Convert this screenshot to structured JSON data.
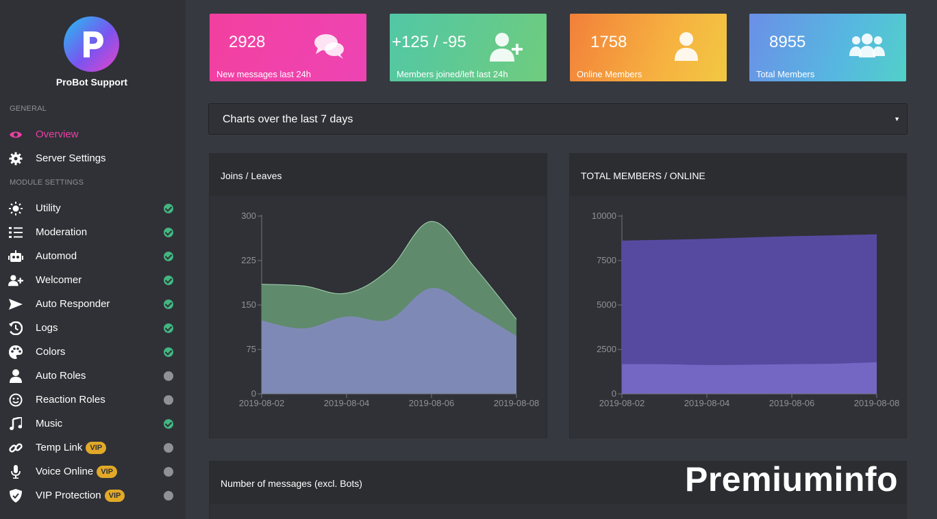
{
  "sidebar": {
    "server_name": "ProBot Support",
    "sections": {
      "general": "GENERAL",
      "module_settings": "MODULE SETTINGS"
    },
    "items": [
      {
        "label": "Overview",
        "icon": "eye-icon",
        "active": true
      },
      {
        "label": "Server Settings",
        "icon": "gear-icon"
      },
      {
        "label": "Utility",
        "icon": "sun-icon",
        "status": "enabled"
      },
      {
        "label": "Moderation",
        "icon": "checklist-icon",
        "status": "enabled"
      },
      {
        "label": "Automod",
        "icon": "robot-icon",
        "status": "enabled"
      },
      {
        "label": "Welcomer",
        "icon": "user-plus-icon",
        "status": "enabled"
      },
      {
        "label": "Auto Responder",
        "icon": "paper-plane-icon",
        "status": "enabled"
      },
      {
        "label": "Logs",
        "icon": "history-icon",
        "status": "enabled"
      },
      {
        "label": "Colors",
        "icon": "palette-icon",
        "status": "enabled"
      },
      {
        "label": "Auto Roles",
        "icon": "user-icon",
        "status": "disabled"
      },
      {
        "label": "Reaction Roles",
        "icon": "smile-icon",
        "status": "disabled"
      },
      {
        "label": "Music",
        "icon": "music-note-icon",
        "status": "enabled"
      },
      {
        "label": "Temp Link",
        "icon": "link-icon",
        "status": "disabled",
        "vip": "VIP"
      },
      {
        "label": "Voice Online",
        "icon": "microphone-icon",
        "status": "disabled",
        "vip": "VIP"
      },
      {
        "label": "VIP Protection",
        "icon": "shield-icon",
        "status": "disabled",
        "vip": "VIP"
      }
    ]
  },
  "stats": [
    {
      "value": "2928",
      "label": "New messages last 24h",
      "icon": "comments-icon"
    },
    {
      "value": "+125 / -95",
      "label": "Members joined/left last 24h",
      "icon": "user-plus-icon"
    },
    {
      "value": "1758",
      "label": "Online Members",
      "icon": "user-icon"
    },
    {
      "value": "8955",
      "label": "Total Members",
      "icon": "users-icon"
    }
  ],
  "range_select": {
    "value": "Charts over the last 7 days"
  },
  "panels": {
    "joins": "Joins / Leaves",
    "members": "TOTAL MEMBERS / ONLINE",
    "messages": "Number of messages (excl. Bots)"
  },
  "watermark": "Premiuminfo",
  "colors": {
    "accent": "#f03ea6",
    "enabled": "#43b581",
    "vip": "#e2a928"
  },
  "chart_data": [
    {
      "type": "area",
      "title": "Joins / Leaves",
      "x": [
        "2019-08-02",
        "2019-08-03",
        "2019-08-04",
        "2019-08-05",
        "2019-08-06",
        "2019-08-07",
        "2019-08-08"
      ],
      "x_tick_labels": [
        "2019-08-02",
        "2019-08-04",
        "2019-08-06",
        "2019-08-08"
      ],
      "y_ticks": [
        0,
        75,
        150,
        225,
        300
      ],
      "ylim": [
        0,
        300
      ],
      "stacked": true,
      "series": [
        {
          "values": [
            123,
            110,
            130,
            125,
            178,
            140,
            97
          ],
          "color": "#7e8ab5"
        },
        {
          "values": [
            62,
            72,
            40,
            85,
            113,
            75,
            29
          ],
          "color": "#5f8a6c"
        }
      ]
    },
    {
      "type": "area",
      "title": "TOTAL MEMBERS / ONLINE",
      "x": [
        "2019-08-02",
        "2019-08-03",
        "2019-08-04",
        "2019-08-05",
        "2019-08-06",
        "2019-08-07",
        "2019-08-08"
      ],
      "x_tick_labels": [
        "2019-08-02",
        "2019-08-04",
        "2019-08-06",
        "2019-08-08"
      ],
      "y_ticks": [
        0,
        2500,
        5000,
        7500,
        10000
      ],
      "ylim": [
        0,
        10000
      ],
      "stacked": false,
      "series": [
        {
          "values": [
            8600,
            8650,
            8700,
            8780,
            8850,
            8900,
            8955
          ],
          "color": "#564aa0"
        },
        {
          "values": [
            1650,
            1650,
            1600,
            1620,
            1650,
            1680,
            1758
          ],
          "color": "#7467c4"
        }
      ]
    }
  ]
}
